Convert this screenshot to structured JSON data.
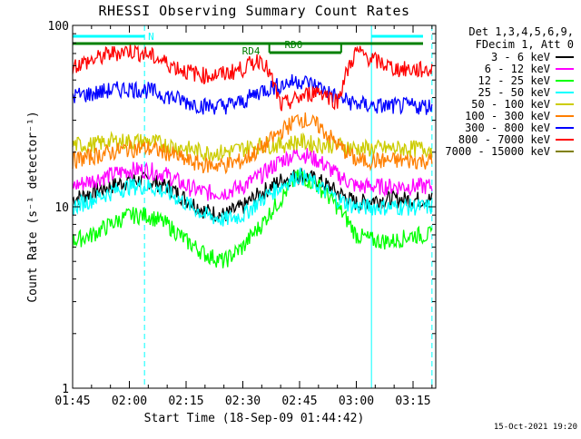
{
  "chart_data": {
    "type": "line",
    "title": "RHESSI Observing Summary Count Rates",
    "xlabel": "Start Time (18-Sep-09 01:44:42)",
    "ylabel": "Count Rate (s⁻¹ detector⁻¹)",
    "yscale": "log",
    "ylim": [
      1,
      100
    ],
    "y_ticks": [
      {
        "value": 1,
        "label": "1"
      },
      {
        "value": 10,
        "label": "10"
      },
      {
        "value": 100,
        "label": "100"
      }
    ],
    "xlim": [
      "01:45",
      "03:21"
    ],
    "x_ticks": [
      "01:45",
      "02:00",
      "02:15",
      "02:30",
      "02:45",
      "03:00",
      "03:15"
    ],
    "legend_header": [
      "Det 1,3,4,5,6,9,",
      "FDecim 1, Att 0"
    ],
    "legend_position": "right",
    "series": [
      {
        "name": "3 - 6 keV",
        "color": "#000000",
        "x": [
          "01:45",
          "01:50",
          "01:55",
          "02:00",
          "02:05",
          "02:10",
          "02:15",
          "02:20",
          "02:25",
          "02:30",
          "02:35",
          "02:40",
          "02:45",
          "02:50",
          "02:55",
          "03:00",
          "03:05",
          "03:10",
          "03:15",
          "03:20"
        ],
        "y": [
          11,
          12,
          13,
          14,
          14,
          13,
          11,
          9.5,
          9,
          10,
          12,
          14,
          15,
          14,
          12,
          10.5,
          11,
          11,
          11,
          11
        ]
      },
      {
        "name": "6 - 12 keV",
        "color": "#ff00ff",
        "x": [
          "01:45",
          "01:50",
          "01:55",
          "02:00",
          "02:05",
          "02:10",
          "02:15",
          "02:20",
          "02:25",
          "02:30",
          "02:35",
          "02:40",
          "02:45",
          "02:50",
          "02:55",
          "03:00",
          "03:05",
          "03:10",
          "03:15",
          "03:20"
        ],
        "y": [
          13,
          14,
          15,
          16,
          16,
          15,
          13,
          12,
          12,
          13,
          15,
          18,
          20,
          18,
          15,
          13,
          13,
          13,
          13,
          13
        ]
      },
      {
        "name": "12 - 25 keV",
        "color": "#00ff00",
        "x": [
          "01:45",
          "01:50",
          "01:55",
          "02:00",
          "02:05",
          "02:10",
          "02:15",
          "02:20",
          "02:25",
          "02:30",
          "02:35",
          "02:40",
          "02:45",
          "02:50",
          "02:55",
          "03:00",
          "03:05",
          "03:10",
          "03:15",
          "03:20"
        ],
        "y": [
          6.5,
          7,
          8,
          9,
          9,
          8,
          6.5,
          5.5,
          5,
          6,
          8,
          11,
          15,
          13,
          10,
          7,
          6.5,
          6.5,
          7,
          7
        ]
      },
      {
        "name": "25 - 50 keV",
        "color": "#00ffff",
        "x": [
          "01:45",
          "01:50",
          "01:55",
          "02:00",
          "02:05",
          "02:10",
          "02:15",
          "02:20",
          "02:25",
          "02:30",
          "02:35",
          "02:40",
          "02:45",
          "02:50",
          "02:55",
          "03:00",
          "03:05",
          "03:10",
          "03:15",
          "03:20"
        ],
        "y": [
          10,
          11,
          12,
          13,
          13,
          12,
          10.5,
          9,
          8.5,
          9,
          11,
          13,
          15,
          13,
          11,
          10,
          10,
          10,
          10,
          10
        ]
      },
      {
        "name": "50 - 100 keV",
        "color": "#cccc00",
        "x": [
          "01:45",
          "01:50",
          "01:55",
          "02:00",
          "02:05",
          "02:10",
          "02:15",
          "02:20",
          "02:25",
          "02:30",
          "02:35",
          "02:40",
          "02:45",
          "02:50",
          "02:55",
          "03:00",
          "03:05",
          "03:10",
          "03:15",
          "03:20"
        ],
        "y": [
          22,
          22,
          23,
          23,
          23,
          22,
          21,
          20,
          20,
          21,
          22,
          22,
          23,
          22,
          22,
          21,
          21,
          21,
          21,
          21
        ]
      },
      {
        "name": "100 - 300 keV",
        "color": "#ff7f00",
        "x": [
          "01:45",
          "01:50",
          "01:55",
          "02:00",
          "02:05",
          "02:10",
          "02:15",
          "02:20",
          "02:25",
          "02:30",
          "02:35",
          "02:40",
          "02:45",
          "02:50",
          "02:55",
          "03:00",
          "03:05",
          "03:10",
          "03:15",
          "03:20"
        ],
        "y": [
          18,
          19,
          20,
          21,
          21,
          20,
          18,
          17,
          17,
          18,
          21,
          26,
          31,
          28,
          22,
          18,
          18,
          18,
          18,
          18
        ]
      },
      {
        "name": "300 - 800 keV",
        "color": "#0000ff",
        "x": [
          "01:45",
          "01:50",
          "01:55",
          "02:00",
          "02:05",
          "02:10",
          "02:15",
          "02:20",
          "02:25",
          "02:30",
          "02:35",
          "02:40",
          "02:45",
          "02:50",
          "02:55",
          "03:00",
          "03:05",
          "03:10",
          "03:15",
          "03:20"
        ],
        "y": [
          41,
          42,
          44,
          45,
          44,
          41,
          38,
          36,
          36,
          38,
          44,
          47,
          50,
          46,
          40,
          37,
          36,
          36,
          36,
          36
        ]
      },
      {
        "name": "800 - 7000 keV",
        "color": "#ff0000",
        "x": [
          "01:45",
          "01:50",
          "01:55",
          "02:00",
          "02:05",
          "02:10",
          "02:15",
          "02:20",
          "02:25",
          "02:30",
          "02:35",
          "02:40",
          "02:45",
          "02:50",
          "02:55",
          "03:00",
          "03:05",
          "03:10",
          "03:15",
          "03:20"
        ],
        "y": [
          60,
          64,
          70,
          73,
          69,
          62,
          56,
          53,
          54,
          58,
          66,
          36,
          40,
          44,
          38,
          72,
          64,
          58,
          57,
          57
        ]
      },
      {
        "name": "7000 - 15000 keV",
        "color": "#808000",
        "x": [],
        "y": []
      }
    ],
    "annotations": {
      "night_marker": "N",
      "saa_markers": [
        "RD4",
        "RD0"
      ]
    },
    "flags": {
      "night_line_color": "#00ffff",
      "decimation_line_color": "#008000"
    }
  },
  "timestamp": "15-Oct-2021 19:20"
}
